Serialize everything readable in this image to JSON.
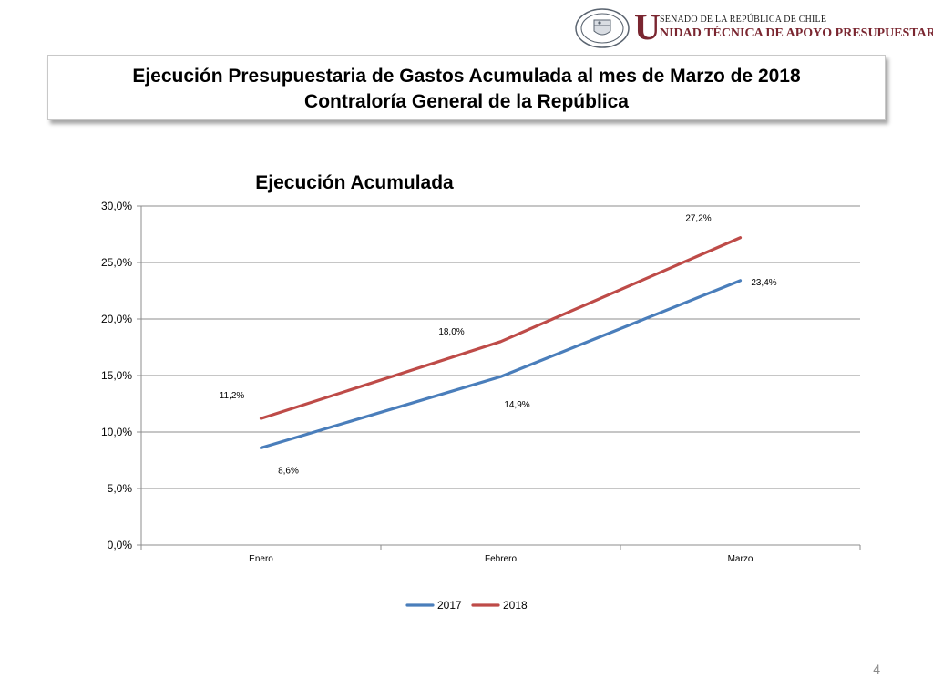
{
  "header": {
    "brand_line1": "SENADO DE LA REPÚBLICA DE CHILE",
    "brand_U": "U",
    "brand_line2": "NIDAD TÉCNICA DE APOYO PRESUPUESTARIO",
    "seal_text_top": "REPÚBLICA DE CHILE",
    "seal_text_bottom": "SENADO",
    "brand_color": "#7a2630"
  },
  "slide": {
    "title_line1": "Ejecución Presupuestaria de Gastos Acumulada al mes de Marzo de 2018",
    "title_line2": "Contraloría General de la República",
    "page_number": "4"
  },
  "chart_data": {
    "type": "line",
    "title": "Ejecución Acumulada",
    "categories": [
      "Enero",
      "Febrero",
      "Marzo"
    ],
    "ylim": [
      0,
      30
    ],
    "yticks": [
      "0,0%",
      "5,0%",
      "10,0%",
      "15,0%",
      "20,0%",
      "25,0%",
      "30,0%"
    ],
    "ytick_values": [
      0,
      5,
      10,
      15,
      20,
      25,
      30
    ],
    "grid": true,
    "legend_position": "bottom",
    "series": [
      {
        "name": "2017",
        "color": "#4a7ebb",
        "values": [
          8.6,
          14.9,
          23.4
        ],
        "labels": [
          "8,6%",
          "14,9%",
          "23,4%"
        ]
      },
      {
        "name": "2018",
        "color": "#be4b48",
        "values": [
          11.2,
          18.0,
          27.2
        ],
        "labels": [
          "11,2%",
          "18,0%",
          "27,2%"
        ]
      }
    ]
  }
}
